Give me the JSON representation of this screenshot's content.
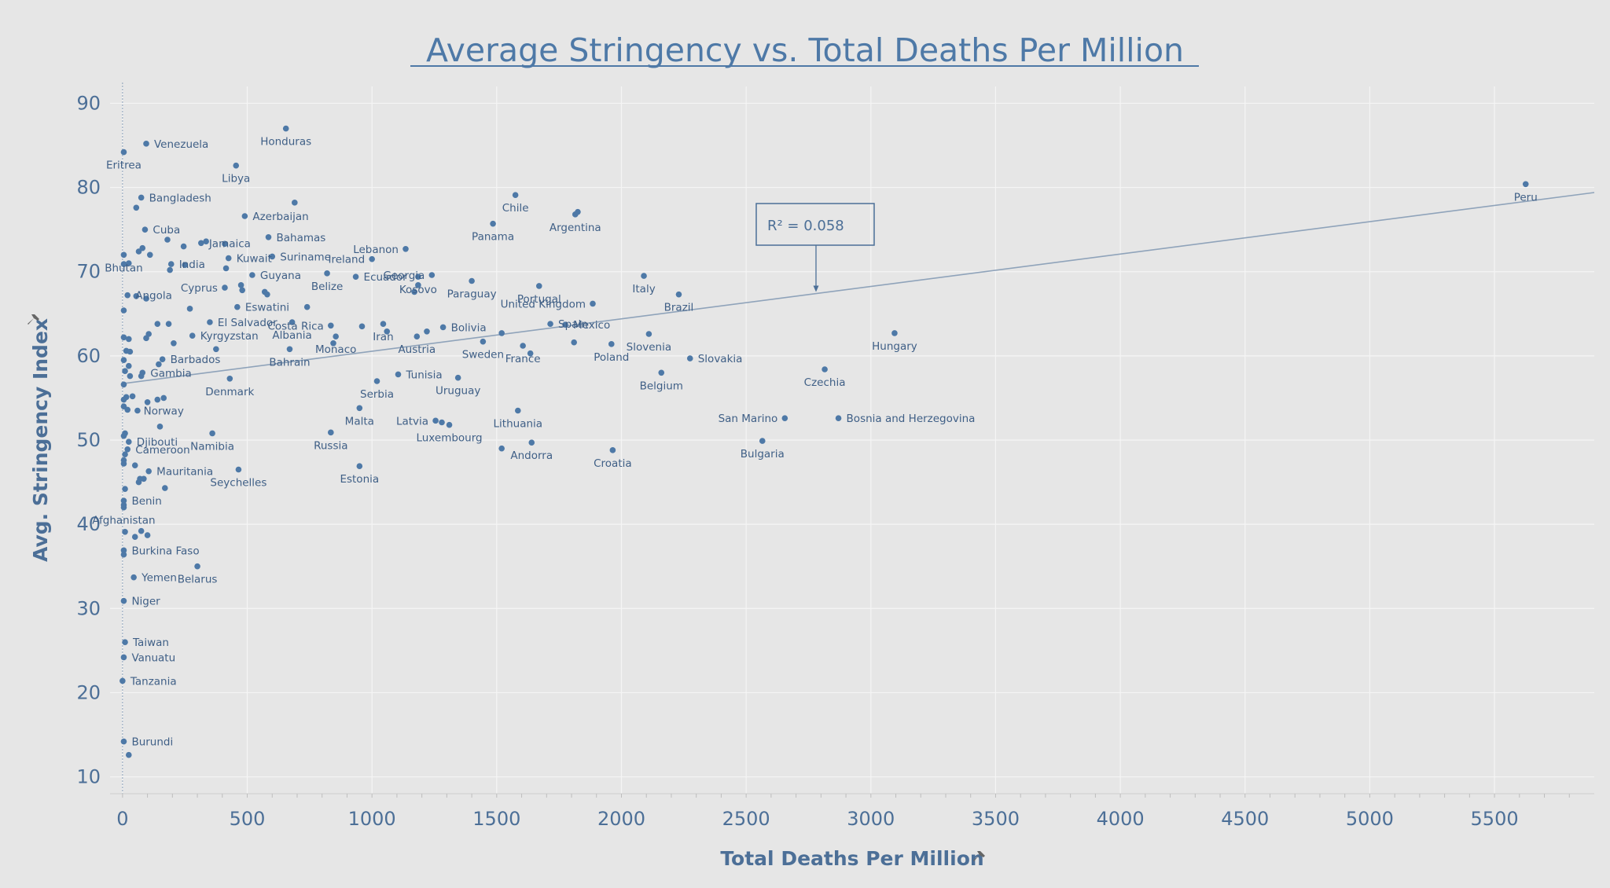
{
  "chart_data": {
    "type": "scatter",
    "title": "Average Stringency vs. Total Deaths Per Million",
    "xlabel": "Total Deaths Per Million",
    "ylabel": "Avg. Stringency Index",
    "xlim": [
      -50,
      5900
    ],
    "ylim": [
      8,
      92
    ],
    "xticks": [
      0,
      500,
      1000,
      1500,
      2000,
      2500,
      3000,
      3500,
      4000,
      4500,
      5000,
      5500
    ],
    "yticks": [
      10,
      20,
      30,
      40,
      50,
      60,
      70,
      80,
      90
    ],
    "grid": true,
    "trend_line": {
      "x0": 0,
      "y0": 56.7,
      "x1": 5900,
      "y1": 79.4
    },
    "annotation": {
      "text": "R² = 0.058",
      "x": 2780,
      "y": 67.5
    },
    "points": [
      {
        "x": 655,
        "y": 87.0,
        "label": "Honduras"
      },
      {
        "x": 95,
        "y": 85.2,
        "label": "Venezuela"
      },
      {
        "x": 5,
        "y": 84.2,
        "label": "Eritrea"
      },
      {
        "x": 455,
        "y": 82.6,
        "label": "Libya"
      },
      {
        "x": 5625,
        "y": 80.4,
        "label": "Peru"
      },
      {
        "x": 1575,
        "y": 79.1,
        "label": "Chile"
      },
      {
        "x": 75,
        "y": 78.8,
        "label": "Bangladesh"
      },
      {
        "x": 690,
        "y": 78.2,
        "label": ""
      },
      {
        "x": 55,
        "y": 77.6,
        "label": ""
      },
      {
        "x": 1815,
        "y": 76.8,
        "label": "Argentina"
      },
      {
        "x": 1825,
        "y": 77.1,
        "label": ""
      },
      {
        "x": 490,
        "y": 76.6,
        "label": "Azerbaijan"
      },
      {
        "x": 1485,
        "y": 75.7,
        "label": "Panama"
      },
      {
        "x": 90,
        "y": 75.0,
        "label": "Cuba"
      },
      {
        "x": 585,
        "y": 74.1,
        "label": "Bahamas"
      },
      {
        "x": 180,
        "y": 73.8,
        "label": ""
      },
      {
        "x": 315,
        "y": 73.4,
        "label": "Jamaica"
      },
      {
        "x": 335,
        "y": 73.6,
        "label": ""
      },
      {
        "x": 410,
        "y": 73.3,
        "label": ""
      },
      {
        "x": 245,
        "y": 73.0,
        "label": ""
      },
      {
        "x": 80,
        "y": 72.8,
        "label": ""
      },
      {
        "x": 65,
        "y": 72.4,
        "label": ""
      },
      {
        "x": 1135,
        "y": 72.7,
        "label": "Lebanon"
      },
      {
        "x": 5,
        "y": 72.0,
        "label": "Bhutan"
      },
      {
        "x": 110,
        "y": 72.0,
        "label": ""
      },
      {
        "x": 600,
        "y": 71.8,
        "label": "Suriname"
      },
      {
        "x": 425,
        "y": 71.6,
        "label": "Kuwait"
      },
      {
        "x": 1000,
        "y": 71.5,
        "label": "Ireland"
      },
      {
        "x": 5,
        "y": 70.9,
        "label": ""
      },
      {
        "x": 25,
        "y": 71.0,
        "label": ""
      },
      {
        "x": 195,
        "y": 70.9,
        "label": "India"
      },
      {
        "x": 250,
        "y": 70.8,
        "label": ""
      },
      {
        "x": 190,
        "y": 70.2,
        "label": ""
      },
      {
        "x": 415,
        "y": 70.4,
        "label": ""
      },
      {
        "x": 520,
        "y": 69.6,
        "label": "Guyana"
      },
      {
        "x": 820,
        "y": 69.8,
        "label": "Belize"
      },
      {
        "x": 935,
        "y": 69.4,
        "label": "Ecuador"
      },
      {
        "x": 1185,
        "y": 69.4,
        "label": "Kosovo"
      },
      {
        "x": 1240,
        "y": 69.6,
        "label": "Georgia"
      },
      {
        "x": 2090,
        "y": 69.5,
        "label": "Italy"
      },
      {
        "x": 1400,
        "y": 68.9,
        "label": "Paraguay"
      },
      {
        "x": 1185,
        "y": 68.4,
        "label": ""
      },
      {
        "x": 1170,
        "y": 67.6,
        "label": ""
      },
      {
        "x": 1670,
        "y": 68.3,
        "label": "Portugal"
      },
      {
        "x": 475,
        "y": 68.4,
        "label": ""
      },
      {
        "x": 410,
        "y": 68.1,
        "label": "Cyprus"
      },
      {
        "x": 480,
        "y": 67.8,
        "label": ""
      },
      {
        "x": 570,
        "y": 67.6,
        "label": ""
      },
      {
        "x": 580,
        "y": 67.3,
        "label": ""
      },
      {
        "x": 2230,
        "y": 67.3,
        "label": "Brazil"
      },
      {
        "x": 20,
        "y": 67.2,
        "label": "Angola"
      },
      {
        "x": 55,
        "y": 67.1,
        "label": ""
      },
      {
        "x": 95,
        "y": 66.8,
        "label": ""
      },
      {
        "x": 1885,
        "y": 66.2,
        "label": "United Kingdom"
      },
      {
        "x": 270,
        "y": 65.6,
        "label": ""
      },
      {
        "x": 460,
        "y": 65.8,
        "label": "Eswatini"
      },
      {
        "x": 740,
        "y": 65.8,
        "label": ""
      },
      {
        "x": 5,
        "y": 65.4,
        "label": ""
      },
      {
        "x": 350,
        "y": 64.0,
        "label": "El Salvador"
      },
      {
        "x": 680,
        "y": 64.0,
        "label": "Albania"
      },
      {
        "x": 835,
        "y": 63.6,
        "label": "Costa Rica"
      },
      {
        "x": 960,
        "y": 63.5,
        "label": ""
      },
      {
        "x": 1045,
        "y": 63.8,
        "label": "Iran"
      },
      {
        "x": 1060,
        "y": 62.9,
        "label": ""
      },
      {
        "x": 1285,
        "y": 63.4,
        "label": "Bolivia"
      },
      {
        "x": 1715,
        "y": 63.8,
        "label": "Spain"
      },
      {
        "x": 1775,
        "y": 63.7,
        "label": "Mexico"
      },
      {
        "x": 140,
        "y": 63.8,
        "label": ""
      },
      {
        "x": 185,
        "y": 63.8,
        "label": ""
      },
      {
        "x": 280,
        "y": 62.4,
        "label": "Kyrgyzstan"
      },
      {
        "x": 1220,
        "y": 62.9,
        "label": ""
      },
      {
        "x": 1180,
        "y": 62.3,
        "label": "Austria"
      },
      {
        "x": 1520,
        "y": 62.7,
        "label": ""
      },
      {
        "x": 2110,
        "y": 62.6,
        "label": "Slovenia"
      },
      {
        "x": 3095,
        "y": 62.7,
        "label": "Hungary"
      },
      {
        "x": 105,
        "y": 62.6,
        "label": ""
      },
      {
        "x": 95,
        "y": 62.1,
        "label": ""
      },
      {
        "x": 5,
        "y": 62.2,
        "label": ""
      },
      {
        "x": 25,
        "y": 62.0,
        "label": ""
      },
      {
        "x": 855,
        "y": 62.3,
        "label": "Monaco"
      },
      {
        "x": 845,
        "y": 61.5,
        "label": ""
      },
      {
        "x": 1445,
        "y": 61.7,
        "label": "Sweden"
      },
      {
        "x": 1810,
        "y": 61.6,
        "label": ""
      },
      {
        "x": 1960,
        "y": 61.4,
        "label": "Poland"
      },
      {
        "x": 1605,
        "y": 61.2,
        "label": "France"
      },
      {
        "x": 205,
        "y": 61.5,
        "label": ""
      },
      {
        "x": 375,
        "y": 60.8,
        "label": ""
      },
      {
        "x": 670,
        "y": 60.8,
        "label": "Bahrain"
      },
      {
        "x": 15,
        "y": 60.6,
        "label": ""
      },
      {
        "x": 30,
        "y": 60.5,
        "label": ""
      },
      {
        "x": 1635,
        "y": 60.3,
        "label": ""
      },
      {
        "x": 2275,
        "y": 59.7,
        "label": "Slovakia"
      },
      {
        "x": 160,
        "y": 59.6,
        "label": "Barbados"
      },
      {
        "x": 145,
        "y": 59.0,
        "label": ""
      },
      {
        "x": 5,
        "y": 59.5,
        "label": ""
      },
      {
        "x": 25,
        "y": 58.8,
        "label": ""
      },
      {
        "x": 10,
        "y": 58.2,
        "label": ""
      },
      {
        "x": 80,
        "y": 58.0,
        "label": "Gambia"
      },
      {
        "x": 75,
        "y": 57.6,
        "label": ""
      },
      {
        "x": 30,
        "y": 57.6,
        "label": ""
      },
      {
        "x": 2815,
        "y": 58.4,
        "label": "Czechia"
      },
      {
        "x": 2160,
        "y": 58.0,
        "label": "Belgium"
      },
      {
        "x": 1105,
        "y": 57.8,
        "label": "Tunisia"
      },
      {
        "x": 1345,
        "y": 57.4,
        "label": "Uruguay"
      },
      {
        "x": 430,
        "y": 57.3,
        "label": "Denmark"
      },
      {
        "x": 1020,
        "y": 57.0,
        "label": "Serbia"
      },
      {
        "x": 5,
        "y": 56.6,
        "label": ""
      },
      {
        "x": 40,
        "y": 55.2,
        "label": ""
      },
      {
        "x": 15,
        "y": 55.1,
        "label": ""
      },
      {
        "x": 5,
        "y": 54.8,
        "label": ""
      },
      {
        "x": 165,
        "y": 55.0,
        "label": "Norway"
      },
      {
        "x": 140,
        "y": 54.8,
        "label": ""
      },
      {
        "x": 100,
        "y": 54.5,
        "label": ""
      },
      {
        "x": 5,
        "y": 54.0,
        "label": ""
      },
      {
        "x": 20,
        "y": 53.6,
        "label": ""
      },
      {
        "x": 60,
        "y": 53.5,
        "label": ""
      },
      {
        "x": 950,
        "y": 53.8,
        "label": "Malta"
      },
      {
        "x": 1585,
        "y": 53.5,
        "label": "Lithuania"
      },
      {
        "x": 1255,
        "y": 52.3,
        "label": "Latvia"
      },
      {
        "x": 1280,
        "y": 52.1,
        "label": ""
      },
      {
        "x": 1310,
        "y": 51.8,
        "label": "Luxembourg"
      },
      {
        "x": 2655,
        "y": 52.6,
        "label": "San Marino"
      },
      {
        "x": 2870,
        "y": 52.6,
        "label": "Bosnia and Herzegovina"
      },
      {
        "x": 150,
        "y": 51.6,
        "label": ""
      },
      {
        "x": 360,
        "y": 50.8,
        "label": "Namibia"
      },
      {
        "x": 835,
        "y": 50.9,
        "label": "Russia"
      },
      {
        "x": 5,
        "y": 50.5,
        "label": ""
      },
      {
        "x": 10,
        "y": 50.8,
        "label": ""
      },
      {
        "x": 25,
        "y": 49.8,
        "label": "Djibouti"
      },
      {
        "x": 2565,
        "y": 49.9,
        "label": "Bulgaria"
      },
      {
        "x": 1640,
        "y": 49.7,
        "label": "Andorra"
      },
      {
        "x": 1520,
        "y": 49.0,
        "label": ""
      },
      {
        "x": 1965,
        "y": 48.8,
        "label": "Croatia"
      },
      {
        "x": 20,
        "y": 48.9,
        "label": "Cameroon"
      },
      {
        "x": 10,
        "y": 48.3,
        "label": ""
      },
      {
        "x": 5,
        "y": 47.6,
        "label": ""
      },
      {
        "x": 5,
        "y": 47.2,
        "label": ""
      },
      {
        "x": 50,
        "y": 47.0,
        "label": ""
      },
      {
        "x": 950,
        "y": 46.9,
        "label": "Estonia"
      },
      {
        "x": 105,
        "y": 46.3,
        "label": "Mauritania"
      },
      {
        "x": 465,
        "y": 46.5,
        "label": "Seychelles"
      },
      {
        "x": 70,
        "y": 45.4,
        "label": ""
      },
      {
        "x": 85,
        "y": 45.4,
        "label": ""
      },
      {
        "x": 65,
        "y": 45.0,
        "label": ""
      },
      {
        "x": 170,
        "y": 44.3,
        "label": ""
      },
      {
        "x": 10,
        "y": 44.2,
        "label": ""
      },
      {
        "x": 5,
        "y": 42.8,
        "label": "Benin"
      },
      {
        "x": 5,
        "y": 42.3,
        "label": ""
      },
      {
        "x": 5,
        "y": 42.0,
        "label": "Afghanistan"
      },
      {
        "x": 10,
        "y": 39.1,
        "label": ""
      },
      {
        "x": 75,
        "y": 39.2,
        "label": ""
      },
      {
        "x": 100,
        "y": 38.7,
        "label": ""
      },
      {
        "x": 50,
        "y": 38.5,
        "label": ""
      },
      {
        "x": 5,
        "y": 36.9,
        "label": "Burkina Faso"
      },
      {
        "x": 5,
        "y": 36.4,
        "label": ""
      },
      {
        "x": 300,
        "y": 35.0,
        "label": "Belarus"
      },
      {
        "x": 45,
        "y": 33.7,
        "label": "Yemen"
      },
      {
        "x": 5,
        "y": 30.9,
        "label": "Niger"
      },
      {
        "x": 10,
        "y": 26.0,
        "label": "Taiwan"
      },
      {
        "x": 5,
        "y": 24.2,
        "label": "Vanuatu"
      },
      {
        "x": 0,
        "y": 21.4,
        "label": "Tanzania"
      },
      {
        "x": 5,
        "y": 14.2,
        "label": "Burundi"
      },
      {
        "x": 25,
        "y": 12.6,
        "label": ""
      }
    ]
  }
}
